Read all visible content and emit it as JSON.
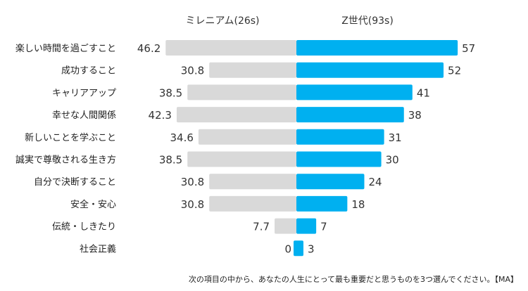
{
  "chart_data": {
    "type": "bar",
    "orientation": "horizontal-diverging",
    "categories": [
      "楽しい時間を過ごすこと",
      "成功すること",
      "キャリアアップ",
      "幸せな人間関係",
      "新しいことを学ぶこと",
      "誠実で尊敬される生き方",
      "自分で決断すること",
      "安全・安心",
      "伝統・しきたり",
      "社会正義"
    ],
    "series": [
      {
        "name": "ミレニアム(26s)",
        "values": [
          46.2,
          30.8,
          38.5,
          42.3,
          34.6,
          38.5,
          30.8,
          30.8,
          7.7,
          0
        ],
        "labels": [
          "46.2",
          "30.8",
          "38.5",
          "42.3",
          "34.6",
          "38.5",
          "30.8",
          "30.8",
          "7.7",
          "0"
        ],
        "color": "#d9d9d9",
        "side": "left"
      },
      {
        "name": "Z世代(93s)",
        "values": [
          57,
          52,
          41,
          38,
          31,
          30,
          24,
          18,
          7,
          3
        ],
        "labels": [
          "57",
          "52",
          "41",
          "38",
          "31",
          "30",
          "24",
          "18",
          "7",
          "3"
        ],
        "color": "#00b0f0",
        "side": "right"
      }
    ],
    "grid": false,
    "legend": "top",
    "footnote": "次の項目の中から、あなたの人生にとって最も重要だと思うものを3つ選んでください。【MA】"
  }
}
